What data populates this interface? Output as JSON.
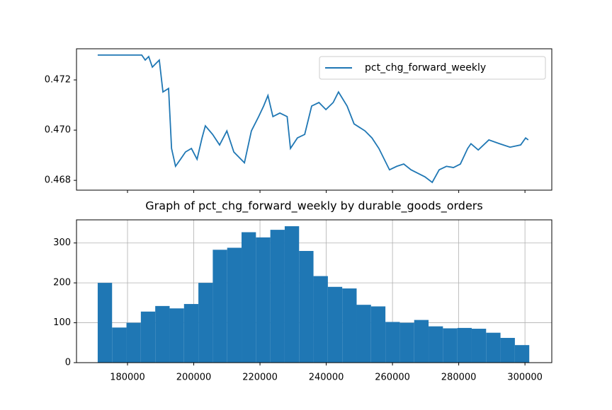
{
  "chart_data": [
    {
      "type": "line",
      "x": [
        171000,
        184300,
        185350,
        186400,
        187500,
        189600,
        190700,
        192400,
        193300,
        194500,
        196000,
        197500,
        199300,
        201000,
        202500,
        203500,
        205700,
        207800,
        210000,
        212100,
        215300,
        217400,
        219600,
        221100,
        222400,
        223900,
        226000,
        228200,
        229200,
        231300,
        233500,
        235600,
        237800,
        239900,
        242100,
        243700,
        246300,
        248400,
        251700,
        253800,
        255900,
        259100,
        261300,
        263400,
        265600,
        267700,
        269800,
        272000,
        274100,
        276300,
        278400,
        280500,
        282700,
        283700,
        285900,
        289100,
        292300,
        295500,
        298700,
        300200,
        301000
      ],
      "series": [
        {
          "name": "pct_chg_forward_weekly",
          "color": "#1f77b4",
          "values": [
            0.47299,
            0.47299,
            0.47279,
            0.47293,
            0.47251,
            0.47279,
            0.47152,
            0.47166,
            0.46927,
            0.46856,
            0.46884,
            0.46913,
            0.46927,
            0.46884,
            0.46969,
            0.47017,
            0.46983,
            0.46941,
            0.46997,
            0.46913,
            0.4687,
            0.46997,
            0.47054,
            0.47096,
            0.47138,
            0.47054,
            0.47068,
            0.47054,
            0.46927,
            0.46969,
            0.46983,
            0.47096,
            0.4711,
            0.47082,
            0.4711,
            0.47152,
            0.47096,
            0.47025,
            0.46997,
            0.46969,
            0.46927,
            0.46842,
            0.46856,
            0.46865,
            0.46842,
            0.46828,
            0.46814,
            0.46792,
            0.46842,
            0.46856,
            0.46851,
            0.46865,
            0.46927,
            0.46946,
            0.46921,
            0.46961,
            0.46946,
            0.46932,
            0.46941,
            0.46969,
            0.46961
          ]
        }
      ],
      "xlim": [
        164600,
        308100
      ],
      "xticks": [
        180000,
        200000,
        220000,
        240000,
        260000,
        280000,
        300000
      ],
      "ylim": [
        0.46761,
        0.47324
      ],
      "yticks": [
        0.468,
        {
          "value": 0.47,
          "label": "0.470"
        },
        0.472
      ],
      "legend": "upper right"
    },
    {
      "type": "histogram",
      "title": "Graph of pct_chg_forward_weekly by durable_goods_orders",
      "bins": [
        171000,
        175343,
        179687,
        184030,
        188373,
        192717,
        197060,
        201403,
        205747,
        210090,
        214433,
        218777,
        223120,
        227463,
        231807,
        236150,
        240493,
        244837,
        249180,
        253523,
        257867,
        262210,
        266553,
        270897,
        275240,
        279583,
        283927,
        288270,
        292613,
        296957,
        301300
      ],
      "values": [
        200,
        88,
        100,
        128,
        142,
        136,
        147,
        200,
        283,
        288,
        327,
        314,
        333,
        342,
        280,
        217,
        190,
        186,
        145,
        141,
        102,
        100,
        107,
        91,
        86,
        87,
        85,
        75,
        62,
        44
      ],
      "color": "#1f77b4",
      "xlim": [
        164600,
        308100
      ],
      "xticks": [
        180000,
        200000,
        220000,
        240000,
        260000,
        280000,
        300000
      ],
      "ylim": [
        0,
        358
      ],
      "yticks": [
        0,
        100,
        200,
        300
      ],
      "grid": true
    }
  ]
}
